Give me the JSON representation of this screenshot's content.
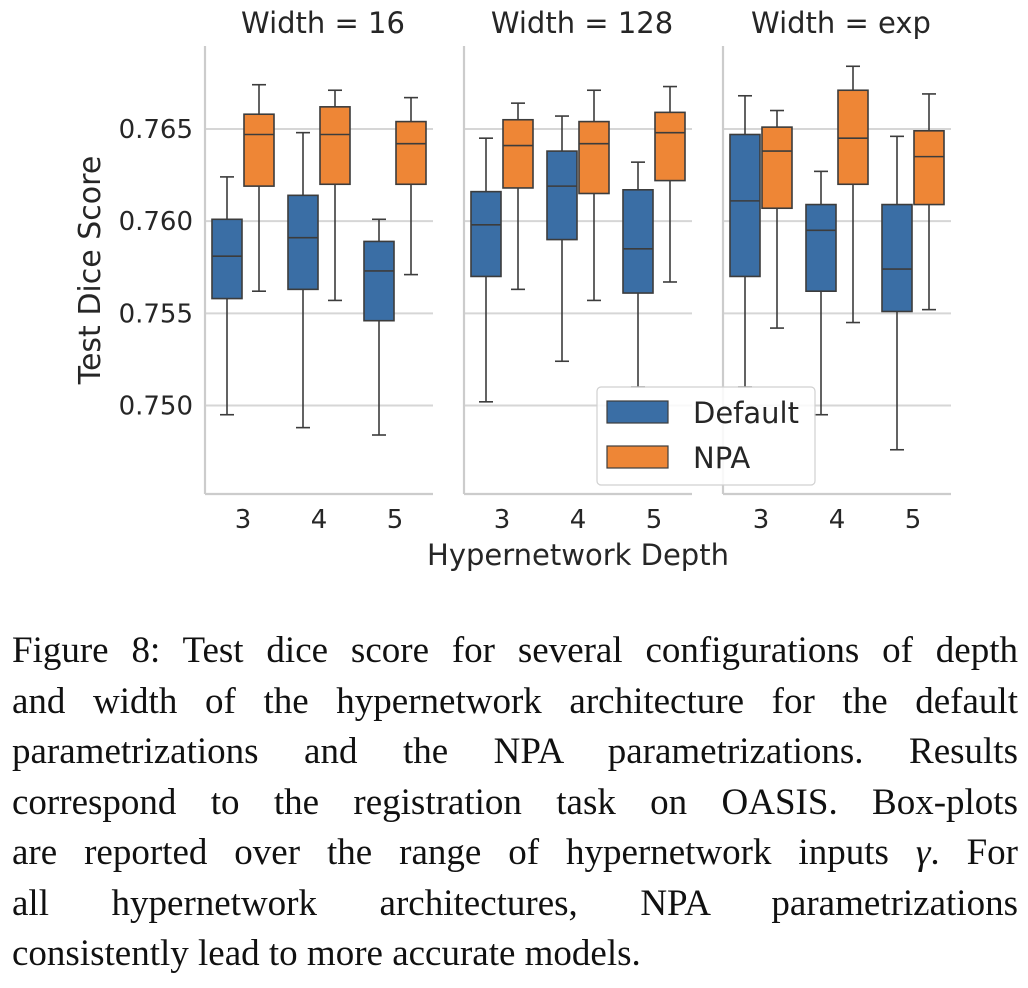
{
  "chart_data": {
    "type": "box",
    "ylabel": "Test Dice Score",
    "xlabel": "Hypernetwork Depth",
    "ylim": [
      0.7452,
      0.7695
    ],
    "yticks": [
      0.75,
      0.755,
      0.76,
      0.765
    ],
    "ytick_labels": [
      "0.750",
      "0.755",
      "0.760",
      "0.765"
    ],
    "grid": "horizontal",
    "legend_position": "bottom-right of middle panel",
    "colors": {
      "Default": "#3a6ea5",
      "NPA": "#ee8636"
    },
    "legend": [
      "Default",
      "NPA"
    ],
    "panels": [
      {
        "title": "Width = 16",
        "categories": [
          "3",
          "4",
          "5"
        ],
        "series": [
          {
            "name": "Default",
            "boxes": [
              {
                "whislo": 0.7495,
                "q1": 0.7558,
                "med": 0.7581,
                "q3": 0.7601,
                "whishi": 0.7624
              },
              {
                "whislo": 0.7488,
                "q1": 0.7563,
                "med": 0.7591,
                "q3": 0.7614,
                "whishi": 0.7648
              },
              {
                "whislo": 0.7484,
                "q1": 0.7546,
                "med": 0.7573,
                "q3": 0.7589,
                "whishi": 0.7601
              }
            ]
          },
          {
            "name": "NPA",
            "boxes": [
              {
                "whislo": 0.7562,
                "q1": 0.7619,
                "med": 0.7647,
                "q3": 0.7658,
                "whishi": 0.7674
              },
              {
                "whislo": 0.7557,
                "q1": 0.762,
                "med": 0.7647,
                "q3": 0.7662,
                "whishi": 0.7671
              },
              {
                "whislo": 0.7571,
                "q1": 0.762,
                "med": 0.7642,
                "q3": 0.7654,
                "whishi": 0.7667
              }
            ]
          }
        ]
      },
      {
        "title": "Width = 128",
        "categories": [
          "3",
          "4",
          "5"
        ],
        "series": [
          {
            "name": "Default",
            "boxes": [
              {
                "whislo": 0.7502,
                "q1": 0.757,
                "med": 0.7598,
                "q3": 0.7616,
                "whishi": 0.7645
              },
              {
                "whislo": 0.7524,
                "q1": 0.759,
                "med": 0.7619,
                "q3": 0.7638,
                "whishi": 0.7657
              },
              {
                "whislo": 0.751,
                "q1": 0.7561,
                "med": 0.7585,
                "q3": 0.7617,
                "whishi": 0.7632
              }
            ]
          },
          {
            "name": "NPA",
            "boxes": [
              {
                "whislo": 0.7563,
                "q1": 0.7618,
                "med": 0.7641,
                "q3": 0.7655,
                "whishi": 0.7664
              },
              {
                "whislo": 0.7557,
                "q1": 0.7615,
                "med": 0.7642,
                "q3": 0.7654,
                "whishi": 0.7671
              },
              {
                "whislo": 0.7567,
                "q1": 0.7622,
                "med": 0.7648,
                "q3": 0.7659,
                "whishi": 0.7673
              }
            ]
          }
        ]
      },
      {
        "title": "Width = exp",
        "categories": [
          "3",
          "4",
          "5"
        ],
        "series": [
          {
            "name": "Default",
            "boxes": [
              {
                "whislo": 0.751,
                "q1": 0.757,
                "med": 0.7611,
                "q3": 0.7647,
                "whishi": 0.7668
              },
              {
                "whislo": 0.7495,
                "q1": 0.7562,
                "med": 0.7595,
                "q3": 0.7609,
                "whishi": 0.7627
              },
              {
                "whislo": 0.7476,
                "q1": 0.7551,
                "med": 0.7574,
                "q3": 0.7609,
                "whishi": 0.7646
              }
            ]
          },
          {
            "name": "NPA",
            "boxes": [
              {
                "whislo": 0.7542,
                "q1": 0.7607,
                "med": 0.7638,
                "q3": 0.7651,
                "whishi": 0.766
              },
              {
                "whislo": 0.7545,
                "q1": 0.762,
                "med": 0.7645,
                "q3": 0.7671,
                "whishi": 0.7684
              },
              {
                "whislo": 0.7552,
                "q1": 0.7609,
                "med": 0.7635,
                "q3": 0.7649,
                "whishi": 0.7669
              }
            ]
          }
        ]
      }
    ]
  },
  "caption": {
    "lines": [
      "Figure 8: Test dice score for several configurations of depth",
      "and width of the hypernetwork architecture for the default",
      "parametrizations and the NPA parametrizations. Results",
      "correspond to the registration task on OASIS. Box-plots",
      "are reported over the range of hypernetwork inputs",
      "γ",
      ". For",
      "all hypernetwork architectures, NPA parametrizations",
      "consistently lead to more accurate models."
    ]
  }
}
